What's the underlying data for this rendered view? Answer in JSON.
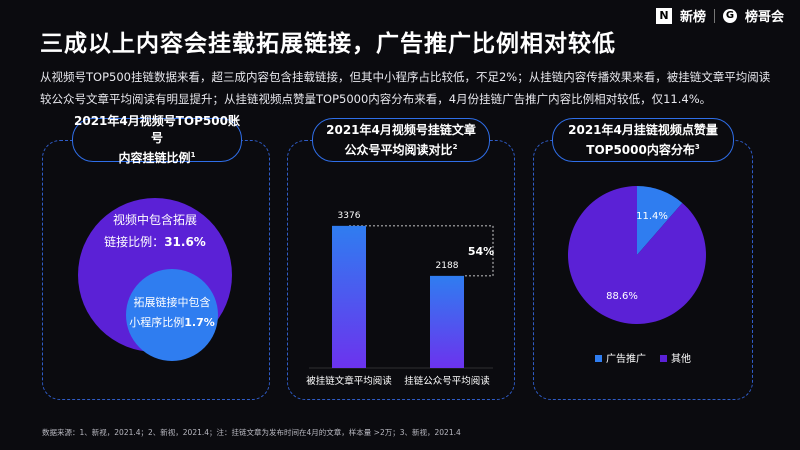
{
  "brand": {
    "name": "新榜",
    "second": "榜哥会"
  },
  "title": "三成以上内容会挂载拓展链接，广告推广比例相对较低",
  "description": "从视频号TOP500挂链数据来看，超三成内容包含挂载链接，但其中小程序占比较低，不足2%；从挂链内容传播效果来看，被挂链文章平均阅读较公众号文章平均阅读有明显提升；从挂链视频点赞量TOP5000内容分布来看，4月份挂链广告推广内容比例相对较低，仅11.4%。",
  "panels": [
    {
      "title_line1": "2021年4月视频号TOP500账号",
      "title_line2": "内容挂链比例",
      "note": "1"
    },
    {
      "title_line1": "2021年4月视频号挂链文章",
      "title_line2": "公众号平均阅读对比",
      "note": "2"
    },
    {
      "title_line1": "2021年4月挂链视频点赞量",
      "title_line2": "TOP5000内容分布",
      "note": "3"
    }
  ],
  "footer": "数据来源：1、新视，2021.4；2、新视，2021.4；注：挂链文章为发布时间在4月的文章，样本量 >2万；3、新视，2021.4",
  "chart_data": [
    {
      "type": "bubble",
      "outer": {
        "label_line1": "视频中包含拓展",
        "label_line2": "链接比例：",
        "value": "31.6%"
      },
      "inner": {
        "label_line1": "拓展链接中包含",
        "label_line2": "小程序比例",
        "value": "1.7%"
      },
      "colors": {
        "outer": "#5b21d6",
        "inner": "#2f7df0"
      }
    },
    {
      "type": "bar",
      "categories": [
        "被挂链文章平均阅读",
        "挂链公众号平均阅读"
      ],
      "values": [
        3376,
        2188
      ],
      "value_labels": [
        "3376",
        "2188"
      ],
      "diff_label": "54%",
      "ylim": [
        0,
        3800
      ],
      "colors": {
        "top": "#2f7df0",
        "bottom": "#6c33ee"
      }
    },
    {
      "type": "pie",
      "slices": [
        {
          "name": "广告推广",
          "value": 11.4,
          "label": "11.4%",
          "color": "#2f7df0"
        },
        {
          "name": "其他",
          "value": 88.6,
          "label": "88.6%",
          "color": "#5b21d6"
        }
      ]
    }
  ]
}
